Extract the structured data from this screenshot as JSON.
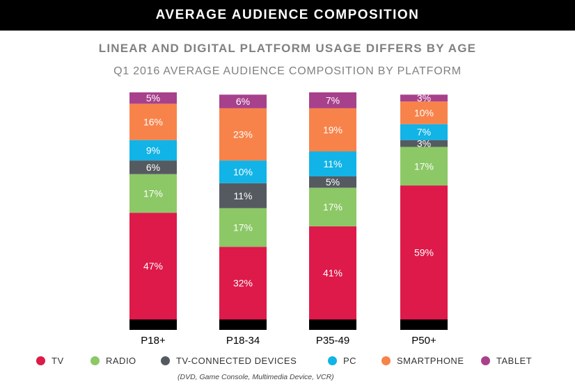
{
  "header": {
    "title": "AVERAGE AUDIENCE COMPOSITION"
  },
  "subtitle": "LINEAR AND DIGITAL PLATFORM USAGE DIFFERS BY AGE",
  "chart_title": "Q1 2016 AVERAGE AUDIENCE COMPOSITION BY PLATFORM",
  "colors": {
    "TV": "#dd1a4a",
    "RADIO": "#8cc866",
    "TV-CONNECTED DEVICES": "#555a61",
    "PC": "#12b3e6",
    "SMARTPHONE": "#f7834a",
    "TABLET": "#a8418c"
  },
  "legend": {
    "items": [
      {
        "label": "TV",
        "color": "#dd1a4a"
      },
      {
        "label": "RADIO",
        "color": "#8cc866"
      },
      {
        "label": "TV-CONNECTED DEVICES",
        "color": "#555a61"
      },
      {
        "label": "PC",
        "color": "#12b3e6"
      },
      {
        "label": "SMARTPHONE",
        "color": "#f7834a"
      },
      {
        "label": "TABLET",
        "color": "#a8418c"
      }
    ],
    "note": "(DVD, Game Console, Multimedia Device, VCR)"
  },
  "chart_data": {
    "type": "bar",
    "stacked": true,
    "categories": [
      "P18+",
      "P18-34",
      "P35-49",
      "P50+"
    ],
    "series": [
      {
        "name": "TV",
        "values": [
          47,
          32,
          41,
          59
        ]
      },
      {
        "name": "RADIO",
        "values": [
          17,
          17,
          17,
          17
        ]
      },
      {
        "name": "TV-CONNECTED DEVICES",
        "values": [
          6,
          11,
          5,
          3
        ]
      },
      {
        "name": "PC",
        "values": [
          9,
          10,
          11,
          7
        ]
      },
      {
        "name": "SMARTPHONE",
        "values": [
          16,
          23,
          19,
          10
        ]
      },
      {
        "name": "TABLET",
        "values": [
          5,
          6,
          7,
          3
        ]
      }
    ],
    "value_labels_suffix": "%",
    "ylim": [
      0,
      100
    ],
    "grid": false,
    "legend_position": "bottom"
  }
}
